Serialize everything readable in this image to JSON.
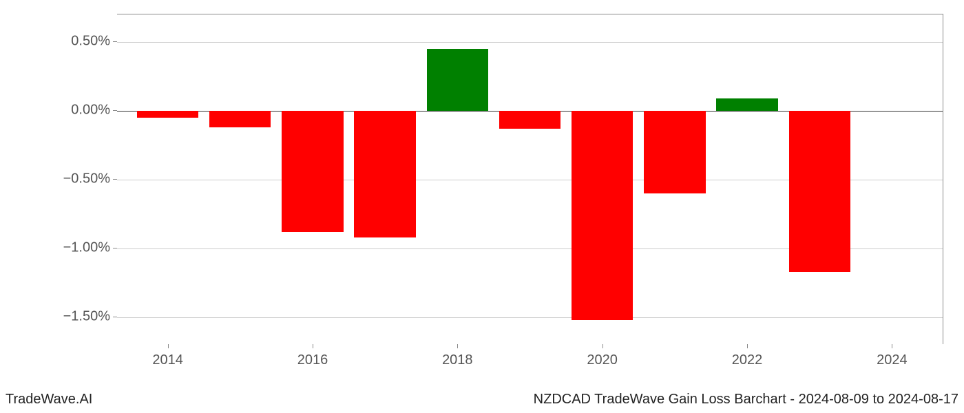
{
  "chart": {
    "type": "bar",
    "years": [
      2014,
      2015,
      2016,
      2017,
      2018,
      2019,
      2020,
      2021,
      2022,
      2023
    ],
    "values_pct": [
      -0.05,
      -0.12,
      -0.88,
      -0.92,
      0.45,
      -0.13,
      -1.52,
      -0.6,
      0.09,
      -1.17
    ],
    "colors": {
      "positive": "#008000",
      "negative": "#ff0000",
      "grid": "#cccccc",
      "axis": "#888888",
      "zero_line": "#333333",
      "text": "#555555",
      "footer_text": "#222222",
      "background": "#ffffff"
    },
    "y_axis": {
      "min": -1.7,
      "max": 0.7,
      "ticks": [
        0.5,
        0.0,
        -0.5,
        -1.0,
        -1.5
      ],
      "tick_labels": [
        "0.50%",
        "0.00%",
        "−0.50%",
        "−1.00%",
        "−1.50%"
      ]
    },
    "x_axis": {
      "min": 2013.3,
      "max": 2024.7,
      "ticks": [
        2014,
        2016,
        2018,
        2020,
        2022,
        2024
      ],
      "tick_labels": [
        "2014",
        "2016",
        "2018",
        "2020",
        "2022",
        "2024"
      ]
    },
    "bar_width_years": 0.85,
    "fontsize_ticks": 20,
    "fontsize_footer": 20
  },
  "footer": {
    "left": "TradeWave.AI",
    "right": "NZDCAD TradeWave Gain Loss Barchart - 2024-08-09 to 2024-08-17"
  }
}
